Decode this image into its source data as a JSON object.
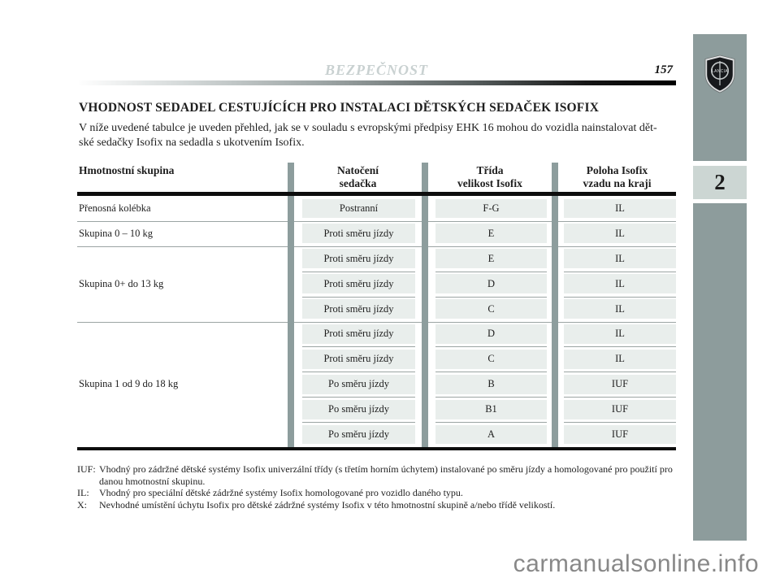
{
  "header": {
    "running_head": "BEZPEČNOST",
    "page_number": "157"
  },
  "sidebar": {
    "brand": "LANCIA",
    "chapter_number": "2"
  },
  "content": {
    "title": "VHODNOST SEDADEL CESTUJÍCÍCH PRO INSTALACI DĚTSKÝCH SEDAČEK ISOFIX",
    "intro_line1": "V níže uvedené tabulce je uveden přehled, jak se v souladu s evropskými předpisy EHK 16 mohou do vozidla nainstalovat dět-",
    "intro_line2": "ské sedačky Isofix na sedadla s ukotvením Isofix."
  },
  "table": {
    "col_headers": {
      "col1": "Hmotnostní skupina",
      "col2": [
        "Natočení",
        "sedačka"
      ],
      "col3": [
        "Třída",
        "velikost Isofix"
      ],
      "col4": [
        "Poloha Isofix",
        "vzadu na kraji"
      ]
    },
    "groups": [
      {
        "label": "Přenosná kolébka",
        "rows": [
          [
            "Postranní",
            "F-G",
            "IL"
          ]
        ]
      },
      {
        "label": "Skupina 0 – 10 kg",
        "rows": [
          [
            "Proti směru jízdy",
            "E",
            "IL"
          ]
        ]
      },
      {
        "label": "Skupina 0+ do 13 kg",
        "rows": [
          [
            "Proti směru jízdy",
            "E",
            "IL"
          ],
          [
            "Proti směru jízdy",
            "D",
            "IL"
          ],
          [
            "Proti směru jízdy",
            "C",
            "IL"
          ]
        ]
      },
      {
        "label": "Skupina 1 od 9 do 18 kg",
        "rows": [
          [
            "Proti směru jízdy",
            "D",
            "IL"
          ],
          [
            "Proti směru jízdy",
            "C",
            "IL"
          ],
          [
            "Po směru jízdy",
            "B",
            "IUF"
          ],
          [
            "Po směru jízdy",
            "B1",
            "IUF"
          ],
          [
            "Po směru jízdy",
            "A",
            "IUF"
          ]
        ]
      }
    ]
  },
  "footnotes": [
    {
      "label": "IUF:",
      "text": "Vhodný pro zádržné dětské systémy Isofix univerzální třídy (s třetím horním úchytem) instalované po směru jízdy a homologované pro použití pro danou hmotnostní skupinu."
    },
    {
      "label": "IL:",
      "text": "Vhodný pro speciální dětské zádržné systémy Isofix homologované pro vozidlo daného typu."
    },
    {
      "label": "X:",
      "text": "Nevhodné umístění úchytu Isofix pro dětské zádržné systémy Isofix v této hmotnostní skupině a/nebo třídě velikostí."
    }
  ],
  "watermark": "carmanualsonline.info",
  "colors": {
    "accent_gray_green": "#8d9c9c",
    "cell_background": "#e9eeec",
    "chapter_tab_background": "#ccd6d3",
    "running_head_text": "#c9d1d1",
    "thin_line": "#9ba4a3",
    "rule_black": "#0d0d0d",
    "watermark_text": "#888888"
  }
}
